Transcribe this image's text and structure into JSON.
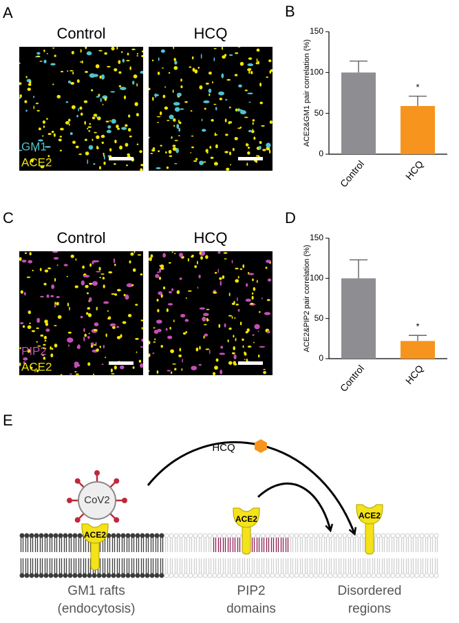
{
  "panels": [
    "A",
    "B",
    "C",
    "D",
    "E"
  ],
  "images": [
    {
      "titles": [
        "Control",
        "HCQ"
      ],
      "legend": [
        {
          "name": "GM1",
          "color": "#4fc3d0"
        },
        {
          "name": "ACE2",
          "color": "#f2e600"
        }
      ]
    },
    {
      "titles": [
        "Control",
        "HCQ"
      ],
      "legend": [
        {
          "name": "PIP2",
          "color": "#c44fb4"
        },
        {
          "name": "ACE2",
          "color": "#f2e600"
        }
      ]
    }
  ],
  "chart_data": [
    {
      "type": "bar",
      "ylabel": "ACE2&GM1 pair correlation (%)",
      "categories": [
        "Control",
        "HCQ"
      ],
      "values": [
        100,
        59
      ],
      "errors": [
        14,
        12
      ],
      "colors": [
        "#8e8e92",
        "#f7941d"
      ],
      "ylim": [
        0,
        150
      ],
      "yticks": [
        0,
        50,
        100,
        150
      ],
      "annotation": "*"
    },
    {
      "type": "bar",
      "ylabel": "ACE2&PIP2 pair correlation (%)",
      "categories": [
        "Control",
        "HCQ"
      ],
      "values": [
        100,
        22
      ],
      "errors": [
        23,
        7
      ],
      "colors": [
        "#8e8e92",
        "#f7941d"
      ],
      "ylim": [
        0,
        150
      ],
      "yticks": [
        0,
        50,
        100,
        150
      ],
      "annotation": "*"
    }
  ],
  "diagram": {
    "drug": "HCQ",
    "virus": "CoV2",
    "receptors": [
      "ACE2",
      "ACE2",
      "ACE2"
    ],
    "regions": [
      [
        "GM1 rafts",
        "(endocytosis)"
      ],
      [
        "PIP2",
        "domains"
      ],
      [
        "Disordered",
        "regions"
      ]
    ]
  }
}
